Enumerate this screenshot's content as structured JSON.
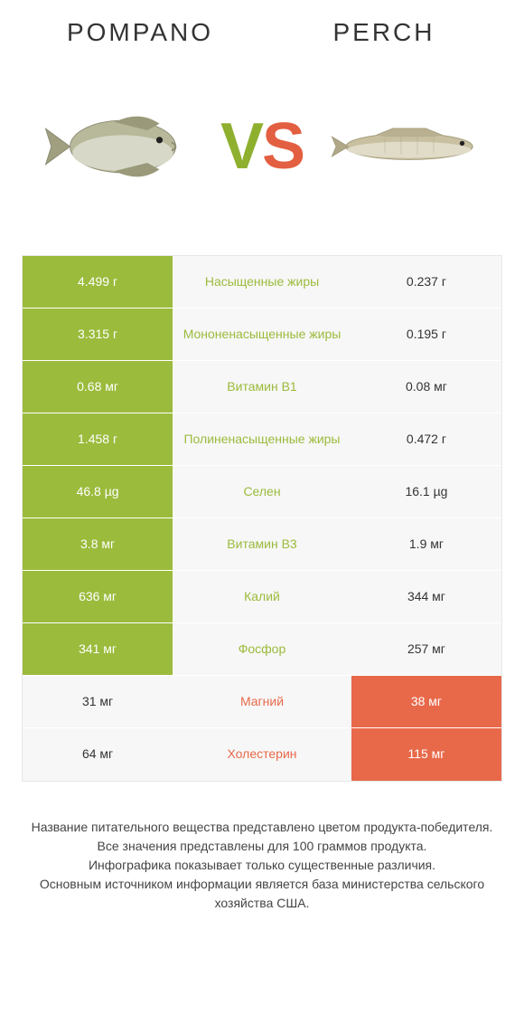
{
  "colors": {
    "left_win": "#9bbb3c",
    "right_win": "#e8694a",
    "neutral_bg": "#f7f7f7",
    "text_dark": "#333333",
    "text_white": "#ffffff"
  },
  "header": {
    "left_title": "Pompano",
    "right_title": "Perch"
  },
  "vs": {
    "v": "V",
    "s": "S"
  },
  "images": {
    "left_alt": "pompano-fish",
    "right_alt": "perch-fish"
  },
  "table": {
    "rows": [
      {
        "left": "4.499 г",
        "label": "Насыщенные жиры",
        "right": "0.237 г",
        "winner": "left"
      },
      {
        "left": "3.315 г",
        "label": "Мононенасыщенные жиры",
        "right": "0.195 г",
        "winner": "left"
      },
      {
        "left": "0.68 мг",
        "label": "Витамин B1",
        "right": "0.08 мг",
        "winner": "left"
      },
      {
        "left": "1.458 г",
        "label": "Полиненасыщенные жиры",
        "right": "0.472 г",
        "winner": "left"
      },
      {
        "left": "46.8 µg",
        "label": "Селен",
        "right": "16.1 µg",
        "winner": "left"
      },
      {
        "left": "3.8 мг",
        "label": "Витамин B3",
        "right": "1.9 мг",
        "winner": "left"
      },
      {
        "left": "636 мг",
        "label": "Калий",
        "right": "344 мг",
        "winner": "left"
      },
      {
        "left": "341 мг",
        "label": "Фосфор",
        "right": "257 мг",
        "winner": "left"
      },
      {
        "left": "31 мг",
        "label": "Магний",
        "right": "38 мг",
        "winner": "right"
      },
      {
        "left": "64 мг",
        "label": "Холестерин",
        "right": "115 мг",
        "winner": "right"
      }
    ]
  },
  "footer": {
    "line1": "Название питательного вещества представлено цветом продукта-победителя.",
    "line2": "Все значения представлены для 100 граммов продукта.",
    "line3": "Инфографика показывает только существенные различия.",
    "line4": "Основным источником информации является база министерства сельского хозяйства США."
  }
}
